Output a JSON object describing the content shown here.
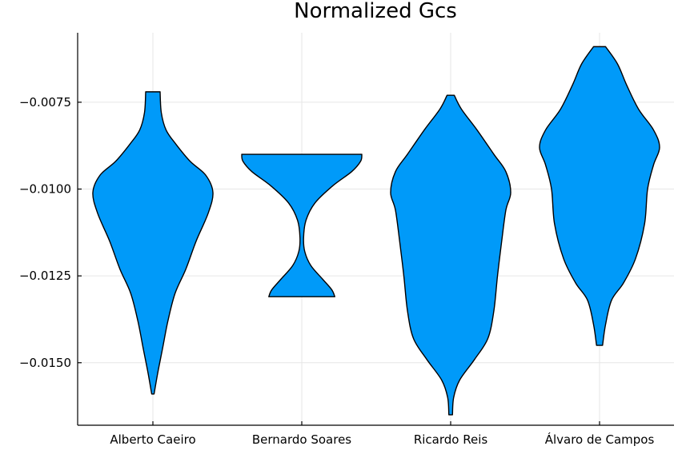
{
  "chart_data": {
    "type": "violin",
    "title": "Normalized Gcs",
    "xlabel": "",
    "ylabel": "",
    "categories": [
      "Alberto Caeiro",
      "Bernardo Soares",
      "Ricardo Reis",
      "Álvaro de Campos"
    ],
    "ylim": [
      -0.0168,
      -0.0055
    ],
    "yticks": [
      -0.0075,
      -0.01,
      -0.0125,
      -0.015
    ],
    "ytick_labels": [
      "−0.0075",
      "−0.0100",
      "−0.0125",
      "−0.0150"
    ],
    "grid": true,
    "fill_color": "#009af9",
    "series": [
      {
        "category": "Alberto Caeiro",
        "profile": [
          [
            -0.0159,
            0.02
          ],
          [
            -0.0153,
            0.08
          ],
          [
            -0.0146,
            0.16
          ],
          [
            -0.0138,
            0.25
          ],
          [
            -0.013,
            0.37
          ],
          [
            -0.0123,
            0.55
          ],
          [
            -0.0115,
            0.72
          ],
          [
            -0.0107,
            0.92
          ],
          [
            -0.0101,
            1.0
          ],
          [
            -0.0096,
            0.88
          ],
          [
            -0.0092,
            0.62
          ],
          [
            -0.0087,
            0.38
          ],
          [
            -0.0083,
            0.22
          ],
          [
            -0.0078,
            0.14
          ],
          [
            -0.0072,
            0.12
          ]
        ]
      },
      {
        "category": "Bernardo Soares",
        "profile": [
          [
            -0.0131,
            0.55
          ],
          [
            -0.0129,
            0.5
          ],
          [
            -0.0126,
            0.35
          ],
          [
            -0.0122,
            0.15
          ],
          [
            -0.0118,
            0.05
          ],
          [
            -0.0114,
            0.03
          ],
          [
            -0.0109,
            0.07
          ],
          [
            -0.0104,
            0.22
          ],
          [
            -0.0099,
            0.52
          ],
          [
            -0.0095,
            0.83
          ],
          [
            -0.0092,
            0.98
          ],
          [
            -0.009,
            1.0
          ]
        ]
      },
      {
        "category": "Ricardo Reis",
        "profile": [
          [
            -0.0165,
            0.03
          ],
          [
            -0.016,
            0.05
          ],
          [
            -0.0155,
            0.15
          ],
          [
            -0.0149,
            0.4
          ],
          [
            -0.0143,
            0.62
          ],
          [
            -0.0135,
            0.72
          ],
          [
            -0.0125,
            0.78
          ],
          [
            -0.0115,
            0.85
          ],
          [
            -0.0106,
            0.92
          ],
          [
            -0.0101,
            1.0
          ],
          [
            -0.0095,
            0.92
          ],
          [
            -0.009,
            0.72
          ],
          [
            -0.0083,
            0.44
          ],
          [
            -0.0077,
            0.18
          ],
          [
            -0.0073,
            0.06
          ]
        ]
      },
      {
        "category": "Álvaro de Campos",
        "profile": [
          [
            -0.0145,
            0.05
          ],
          [
            -0.0139,
            0.1
          ],
          [
            -0.0132,
            0.2
          ],
          [
            -0.0127,
            0.4
          ],
          [
            -0.012,
            0.6
          ],
          [
            -0.011,
            0.75
          ],
          [
            -0.01,
            0.8
          ],
          [
            -0.0093,
            0.9
          ],
          [
            -0.0088,
            1.0
          ],
          [
            -0.0083,
            0.9
          ],
          [
            -0.0077,
            0.65
          ],
          [
            -0.007,
            0.45
          ],
          [
            -0.0064,
            0.3
          ],
          [
            -0.0059,
            0.1
          ]
        ]
      }
    ]
  }
}
